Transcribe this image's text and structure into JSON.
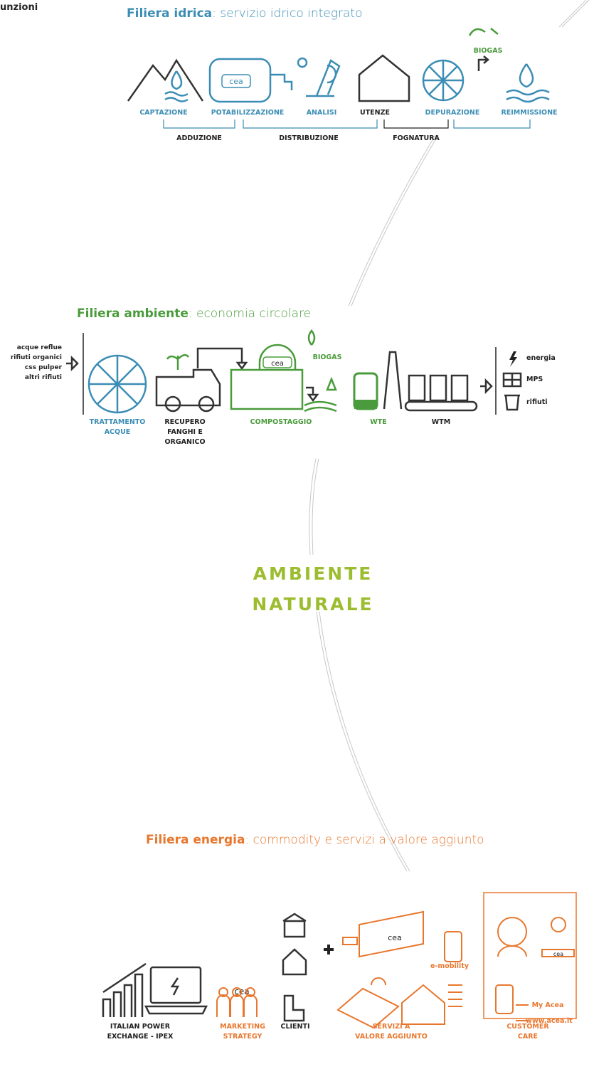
{
  "corner_label": "unzioni",
  "water": {
    "title": "Filiera idrica",
    "subtitle": ": servizio idrico integrato",
    "stages": [
      "CAPTAZIONE",
      "POTABILIZZAZIONE",
      "ANALISI",
      "UTENZE",
      "DEPURAZIONE",
      "REIMMISSIONE"
    ],
    "groups": [
      "ADDUZIONE",
      "DISTRIBUZIONE",
      "FOGNATURA"
    ],
    "biogas": "BIOGAS",
    "logo": "cea"
  },
  "environment": {
    "title": "Filiera ambiente",
    "subtitle": ": economia circolare",
    "inputs": [
      "acque reflue",
      "rifiuti organici",
      "css pulper",
      "altri rifiuti"
    ],
    "stages": [
      [
        "TRATTAMENTO",
        "ACQUE"
      ],
      [
        "RECUPERO",
        "FANGHI E",
        "ORGANICO"
      ],
      [
        "COMPOSTAGGIO"
      ],
      [
        "WTE"
      ],
      [
        "WTM"
      ]
    ],
    "biogas": "BIOGAS",
    "logo": "cea",
    "outputs": [
      "energia",
      "MPS",
      "rifiuti"
    ]
  },
  "center": {
    "lines": [
      "AMBIENTE",
      "NATURALE"
    ]
  },
  "energy": {
    "title": "Filiera energia",
    "subtitle": ": commodity e servizi a valore aggiunto",
    "stages": [
      [
        "ITALIAN POWER",
        "EXCHANGE - IPEX"
      ],
      [
        "MARKETING",
        "STRATEGY"
      ],
      [
        "CLIENTI"
      ],
      [
        "SERVIZI A",
        "VALORE AGGIUNTO"
      ],
      [
        "CUSTOMER",
        "CARE"
      ]
    ],
    "logo": "cea",
    "emobility": "e-mobility",
    "links": [
      "My Acea",
      "www.acea.it"
    ]
  }
}
